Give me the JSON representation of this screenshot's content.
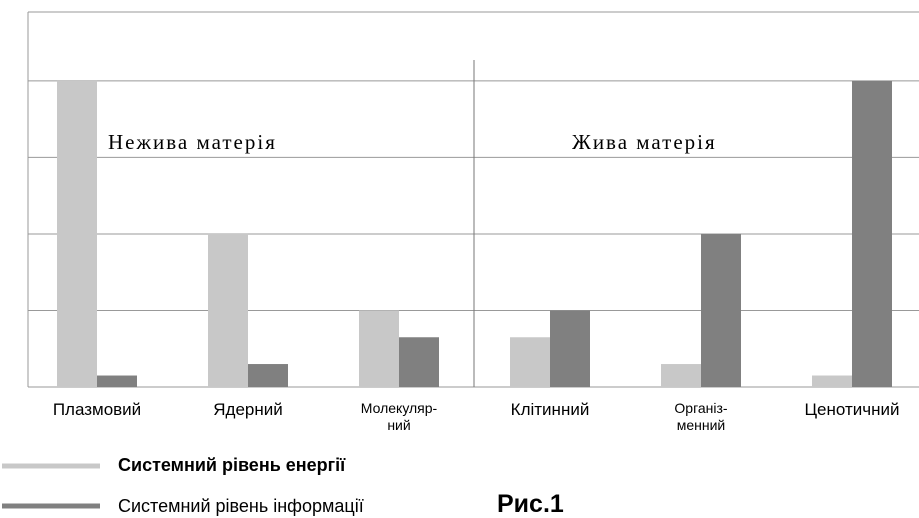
{
  "chart_data": {
    "type": "bar",
    "categories": [
      "Плазмовий",
      "Ядерний",
      "Молекуляр-\nний",
      "Клітинний",
      "Організ-\nменний",
      "Ценотичний"
    ],
    "series": [
      {
        "name": "Системний рівень енергії",
        "color": "#c8c8c8",
        "values": [
          4,
          2,
          1,
          0.65,
          0.3,
          0.15
        ]
      },
      {
        "name": "Системний рівень інформації",
        "color": "#808080",
        "values": [
          0.15,
          0.3,
          0.65,
          1,
          2,
          4
        ]
      }
    ],
    "ylim": [
      0,
      4.9
    ],
    "yticks": [
      0,
      1,
      2,
      3,
      4
    ],
    "grid": true,
    "annotations": [
      "Нежива матерія",
      "Жива матерія"
    ],
    "caption": "Рис.1"
  }
}
